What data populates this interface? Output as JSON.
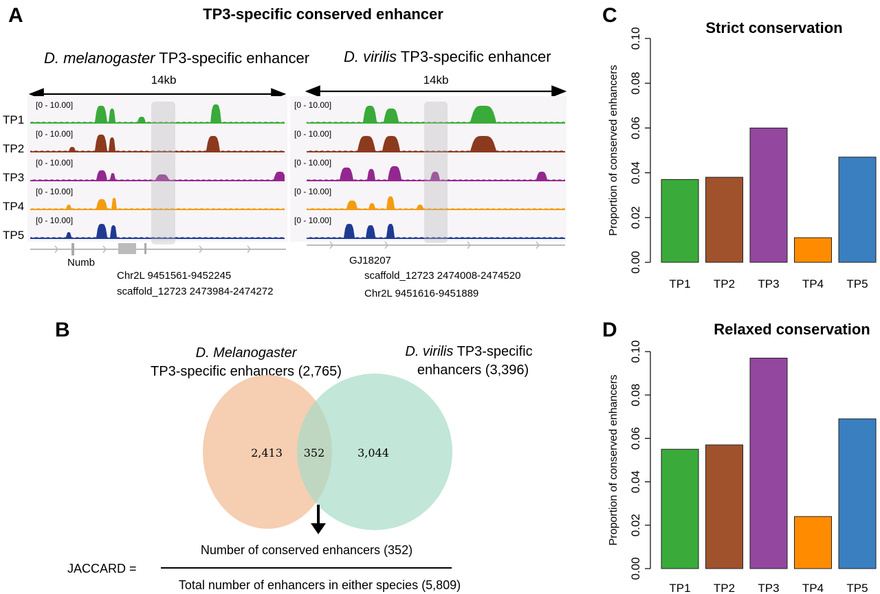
{
  "panel_a": {
    "letter": "A",
    "title": "TP3-specific conserved enhancer",
    "left": {
      "title_italic": "D. melanogaster",
      "title_rest": " TP3-specific enhancer",
      "scale": "14kb",
      "gene": "Numb",
      "coord1": "Chr2L 9451561-9452245",
      "coord2": "scaffold_12723 2473984-2474272"
    },
    "right": {
      "title_italic": "D. virilis",
      "title_rest": " TP3-specific enhancer",
      "scale": "14kb",
      "gene": "GJ18207",
      "coord1": "scaffold_12723 2474008-2474520",
      "coord2": "Chr2L 9451616-9451889"
    },
    "tracks": [
      {
        "name": "TP1",
        "range": "[0 - 10.00]",
        "color": "#3aaa3a"
      },
      {
        "name": "TP2",
        "range": "[0 - 10.00]",
        "color": "#8b3a1e"
      },
      {
        "name": "TP3",
        "range": "[0 - 10.00]",
        "color": "#93278f"
      },
      {
        "name": "TP4",
        "range": "[0 - 10.00]",
        "color": "#f39c12"
      },
      {
        "name": "TP5",
        "range": "[0 - 10.00]",
        "color": "#1f3a93"
      }
    ]
  },
  "panel_b": {
    "letter": "B",
    "left_title_italic": "D. Melanogaster",
    "left_title_line2": "TP3-specific enhancers (2,765)",
    "right_title_italic": "D. virilis",
    "right_title_rest": " TP3-specific",
    "right_title_line2": "enhancers (3,396)",
    "left_only": "2,413",
    "overlap": "352",
    "right_only": "3,044",
    "jaccard_label": "JACCARD =",
    "numerator": "Number of conserved enhancers (352)",
    "denominator": "Total number of enhancers in either species (5,809)",
    "left_color": "#f5c6a5",
    "right_color": "#a8dcc8"
  },
  "chart_data": [
    {
      "type": "bar",
      "letter": "C",
      "title": "Strict conservation",
      "ylabel": "Proportion of conserved enhancers",
      "categories": [
        "TP1",
        "TP2",
        "TP3",
        "TP4",
        "TP5"
      ],
      "values": [
        0.037,
        0.038,
        0.06,
        0.011,
        0.047
      ],
      "colors": [
        "#3aaa3a",
        "#a0522d",
        "#93479f",
        "#ff8c00",
        "#3a7fbf"
      ],
      "ylim": [
        0,
        0.1
      ],
      "yticks": [
        "0.00",
        "0.02",
        "0.04",
        "0.06",
        "0.08",
        "0.10"
      ]
    },
    {
      "type": "bar",
      "letter": "D",
      "title": "Relaxed conservation",
      "ylabel": "Proportion of conserved enhancers",
      "categories": [
        "TP1",
        "TP2",
        "TP3",
        "TP4",
        "TP5"
      ],
      "values": [
        0.055,
        0.057,
        0.097,
        0.024,
        0.069
      ],
      "colors": [
        "#3aaa3a",
        "#a0522d",
        "#93479f",
        "#ff8c00",
        "#3a7fbf"
      ],
      "ylim": [
        0,
        0.1
      ],
      "yticks": [
        "0.00",
        "0.02",
        "0.04",
        "0.06",
        "0.08",
        "0.10"
      ]
    }
  ]
}
